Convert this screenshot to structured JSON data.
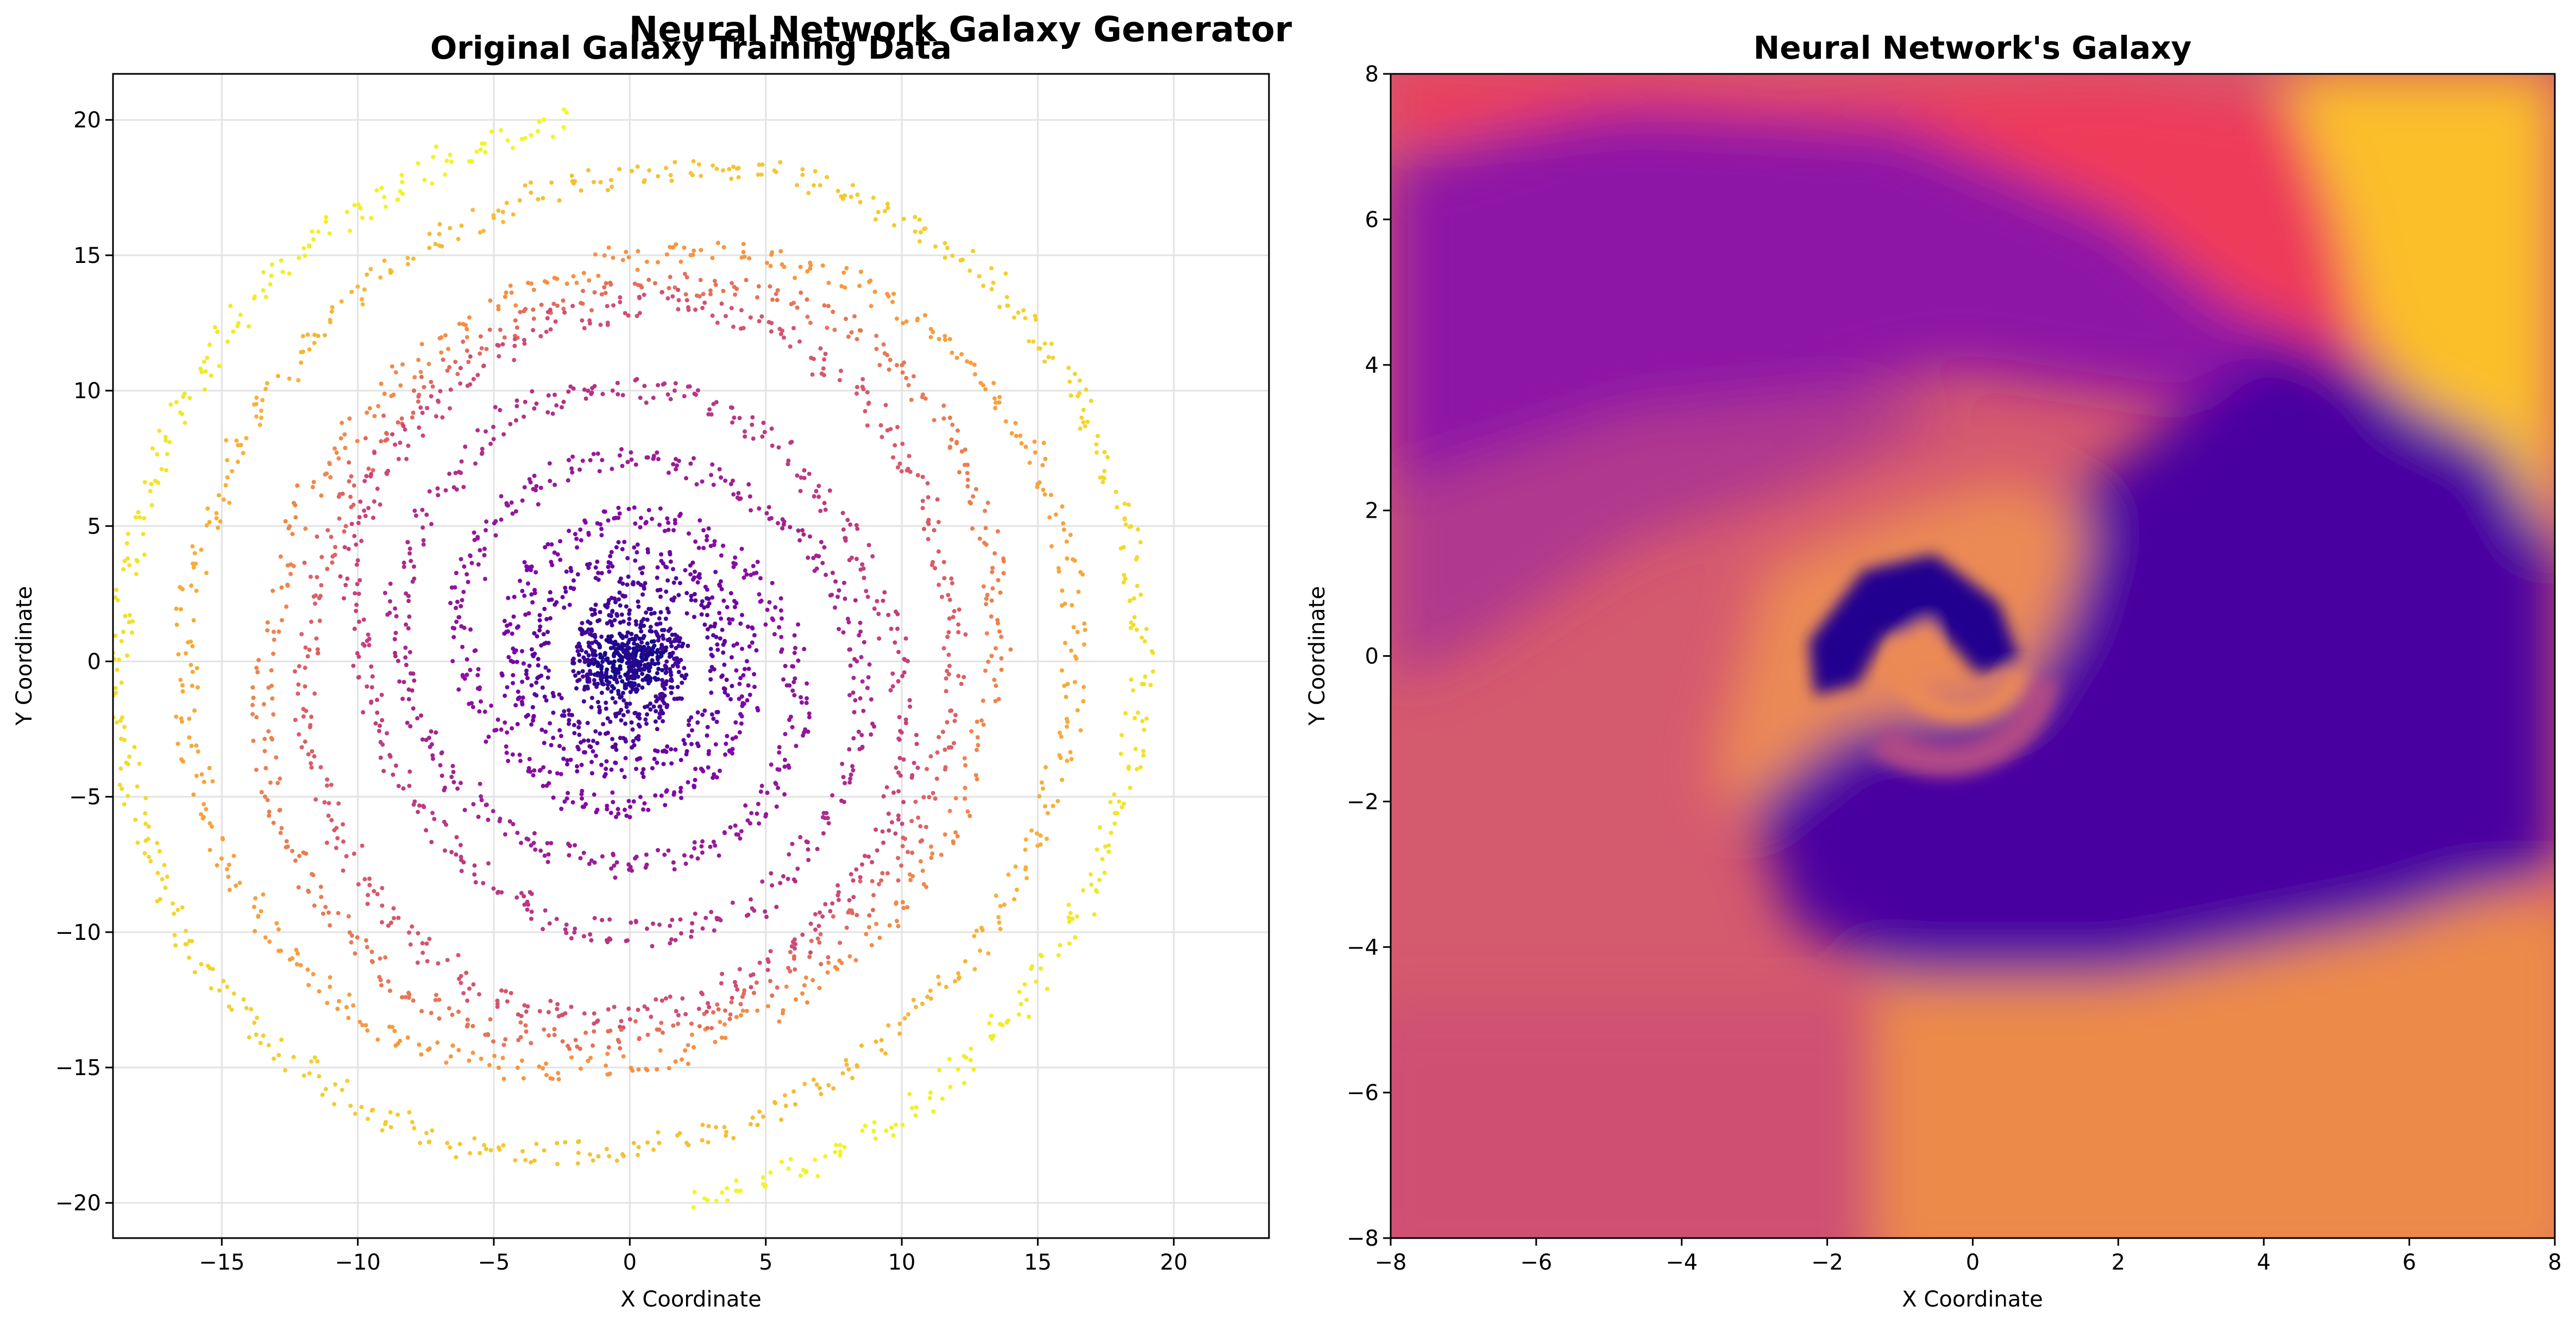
{
  "figure": {
    "suptitle": "Neural Network Galaxy Generator"
  },
  "chart_data": [
    {
      "type": "scatter",
      "title": "Original Galaxy Training Data",
      "xlabel": "X Coordinate",
      "ylabel": "Y Coordinate",
      "xlim": [
        -19.0,
        23.5
      ],
      "ylim": [
        -21.3,
        21.7
      ],
      "xticks": [
        -15,
        -10,
        -5,
        0,
        5,
        10,
        15,
        20
      ],
      "yticks": [
        -20,
        -15,
        -10,
        -5,
        0,
        5,
        10,
        15,
        20
      ],
      "grid": true,
      "colormap": "plasma",
      "arm_count": 2,
      "arm_points": [
        [
          0.0,
          0.0
        ],
        [
          0.5,
          0.6
        ],
        [
          1.1,
          0.2
        ],
        [
          0.8,
          -0.5
        ],
        [
          0.0,
          -0.6
        ],
        [
          -0.5,
          0.2
        ],
        [
          0.0,
          1.0
        ],
        [
          1.5,
          0.8
        ],
        [
          1.8,
          -0.7
        ],
        [
          0.8,
          -1.9
        ],
        [
          -0.8,
          -1.8
        ],
        [
          -1.8,
          -0.5
        ],
        [
          -1.5,
          1.4
        ],
        [
          0.0,
          2.9
        ],
        [
          2.0,
          2.6
        ],
        [
          3.4,
          1.0
        ],
        [
          3.4,
          -1.2
        ],
        [
          2.0,
          -3.2
        ],
        [
          -0.1,
          -4.0
        ],
        [
          -2.5,
          -3.4
        ],
        [
          -4.2,
          -1.4
        ],
        [
          -4.4,
          1.3
        ],
        [
          -3.2,
          3.8
        ],
        [
          -0.9,
          5.4
        ],
        [
          1.8,
          5.2
        ],
        [
          4.2,
          3.6
        ],
        [
          5.9,
          1.0
        ],
        [
          6.3,
          -2.0
        ],
        [
          5.2,
          -4.9
        ],
        [
          2.8,
          -7.0
        ],
        [
          -0.5,
          -7.6
        ],
        [
          -3.8,
          -6.6
        ],
        [
          -6.5,
          -4.4
        ],
        [
          -8.2,
          -1.3
        ],
        [
          -8.6,
          2.3
        ],
        [
          -7.2,
          6.0
        ],
        [
          -4.5,
          9.2
        ],
        [
          -1.0,
          10.1
        ],
        [
          2.5,
          9.8
        ],
        [
          5.8,
          7.7
        ],
        [
          8.3,
          4.5
        ],
        [
          9.8,
          0.7
        ],
        [
          10.3,
          -3.4
        ],
        [
          9.1,
          -7.2
        ],
        [
          6.4,
          -10.4
        ],
        [
          2.7,
          -12.6
        ],
        [
          -1.4,
          -13.3
        ],
        [
          -5.3,
          -12.3
        ],
        [
          -8.7,
          -9.8
        ],
        [
          -10.9,
          -6.2
        ],
        [
          -12.0,
          -2.0
        ],
        [
          -11.8,
          2.6
        ],
        [
          -10.2,
          6.9
        ],
        [
          -7.3,
          10.4
        ],
        [
          -3.5,
          12.9
        ],
        [
          0.8,
          14.0
        ],
        [
          5.0,
          13.7
        ],
        [
          8.8,
          11.9
        ],
        [
          11.7,
          8.6
        ],
        [
          13.3,
          4.6
        ],
        [
          13.6,
          0.3
        ],
        [
          12.3,
          -5.4
        ],
        [
          9.6,
          -9.5
        ],
        [
          5.7,
          -12.8
        ],
        [
          1.0,
          -14.8
        ],
        [
          -3.9,
          -15.2
        ],
        [
          -8.5,
          -14.0
        ],
        [
          -12.3,
          -11.3
        ],
        [
          -15.0,
          -7.3
        ],
        [
          -16.3,
          -2.7
        ],
        [
          -16.3,
          2.4
        ],
        [
          -14.8,
          7.2
        ],
        [
          -12.2,
          11.5
        ],
        [
          -8.3,
          14.9
        ],
        [
          -3.9,
          17.2
        ],
        [
          0.9,
          18.2
        ],
        [
          5.6,
          18.0
        ],
        [
          10.0,
          16.5
        ],
        [
          13.7,
          13.7
        ],
        [
          16.5,
          10.0
        ],
        [
          18.2,
          5.6
        ],
        [
          18.9,
          0.9
        ],
        [
          18.4,
          -3.9
        ],
        [
          16.9,
          -8.6
        ],
        [
          14.4,
          -12.8
        ],
        [
          10.9,
          -16.2
        ],
        [
          6.7,
          -18.6
        ],
        [
          2.0,
          -20.0
        ]
      ]
    },
    {
      "type": "heatmap",
      "title": "Neural Network's Galaxy",
      "xlabel": "X Coordinate",
      "ylabel": "Y Coordinate",
      "xlim": [
        -8,
        8
      ],
      "ylim": [
        -8,
        8
      ],
      "xticks": [
        -8,
        -6,
        -4,
        -2,
        0,
        2,
        4,
        6,
        8
      ],
      "yticks": [
        -8,
        -6,
        -4,
        -2,
        0,
        2,
        4,
        6,
        8
      ],
      "grid": false,
      "colormap": "plasma"
    }
  ]
}
